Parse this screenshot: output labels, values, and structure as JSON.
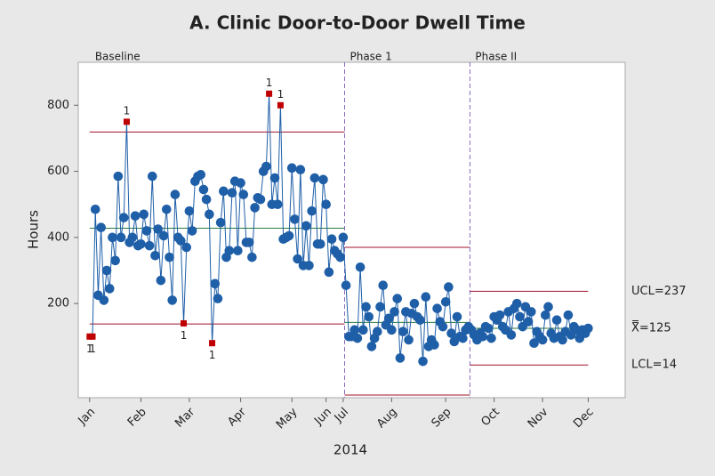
{
  "chart_data": {
    "type": "control",
    "title": "A. Clinic Door-to-Door Dwell Time",
    "x_label": "2014",
    "y_label": "Hours",
    "values": [
      100,
      100,
      485,
      225,
      430,
      210,
      300,
      245,
      400,
      330,
      585,
      400,
      460,
      750,
      385,
      400,
      465,
      375,
      380,
      470,
      420,
      375,
      585,
      345,
      425,
      270,
      405,
      485,
      340,
      210,
      530,
      400,
      390,
      140,
      370,
      480,
      420,
      570,
      585,
      590,
      545,
      515,
      470,
      80,
      260,
      215,
      445,
      540,
      340,
      360,
      535,
      570,
      360,
      565,
      530,
      385,
      385,
      340,
      490,
      520,
      515,
      600,
      615,
      835,
      500,
      580,
      500,
      800,
      395,
      400,
      405,
      610,
      455,
      335,
      605,
      315,
      435,
      315,
      480,
      580,
      380,
      380,
      575,
      500,
      295,
      395,
      360,
      350,
      340,
      400,
      255,
      100,
      100,
      120,
      95,
      310,
      120,
      190,
      160,
      70,
      95,
      115,
      190,
      255,
      135,
      155,
      120,
      175,
      215,
      35,
      115,
      175,
      90,
      170,
      200,
      160,
      150,
      25,
      220,
      70,
      90,
      75,
      185,
      145,
      130,
      205,
      250,
      110,
      85,
      160,
      100,
      95,
      120,
      130,
      120,
      105,
      90,
      110,
      100,
      130,
      125,
      95,
      160,
      150,
      165,
      130,
      120,
      175,
      105,
      185,
      200,
      160,
      130,
      190,
      145,
      175,
      80,
      115,
      100,
      90,
      165,
      190,
      110,
      95,
      150,
      100,
      90,
      115,
      165,
      105,
      130,
      120,
      95,
      120,
      110,
      125
    ],
    "color": "#1f5fa8",
    "flag_color": "#c00000",
    "limit_color": "#a0112b",
    "center_color": "#2a7a3a",
    "phase_line_color": "#8a6cc0",
    "out_of_control": [
      0,
      1,
      13,
      33,
      43,
      63,
      67
    ],
    "flag_label": "1",
    "phases": [
      {
        "name": "Baseline",
        "first": 1,
        "last": 90,
        "ucl": 719,
        "cl": 428,
        "lcl": 138
      },
      {
        "name": "Phase 1",
        "first": 91,
        "last": 134,
        "ucl": 370,
        "cl": 143,
        "lcl": -77
      },
      {
        "name": "Phase II",
        "first": 135,
        "last": 176,
        "ucl": 237,
        "cl": 125,
        "lcl": 14,
        "ucl_label": "UCL=237",
        "cl_label": "X̿=125",
        "lcl_label": "LCL=14"
      }
    ],
    "xlim": [
      -3,
      189
    ],
    "ylim": [
      -85,
      930
    ],
    "yticks": [
      200,
      400,
      600,
      800
    ],
    "xticks": [
      {
        "value": 1,
        "label": "Jan"
      },
      {
        "value": 19,
        "label": "Feb"
      },
      {
        "value": 36,
        "label": "Mar"
      },
      {
        "value": 54,
        "label": "Apr"
      },
      {
        "value": 72,
        "label": "May"
      },
      {
        "value": 84,
        "label": "Jun"
      },
      {
        "value": 90,
        "label": "Jul"
      },
      {
        "value": 107,
        "label": "Aug"
      },
      {
        "value": 126,
        "label": "Sep"
      },
      {
        "value": 143,
        "label": "Oct"
      },
      {
        "value": 160,
        "label": "Nov"
      },
      {
        "value": 176,
        "label": "Dec"
      }
    ]
  }
}
